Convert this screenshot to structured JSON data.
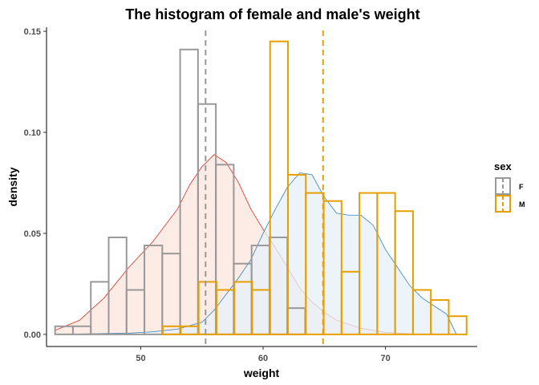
{
  "chart_data": {
    "type": "histogram",
    "title": "The histogram of female and male's weight",
    "xlabel": "weight",
    "ylabel": "density",
    "xlim": [
      42.3,
      77.5
    ],
    "ylim": [
      -0.006,
      0.152
    ],
    "x_ticks": [
      50,
      60,
      70
    ],
    "x_tick_labels": [
      "50",
      "60",
      "70"
    ],
    "y_ticks": [
      0.0,
      0.05,
      0.1,
      0.15
    ],
    "y_tick_labels": [
      "0.00",
      "0.05",
      "0.10",
      "0.15"
    ],
    "grid": false,
    "legend": {
      "title": "sex",
      "position": "right",
      "entries": [
        {
          "label": "F",
          "color": "#999999"
        },
        {
          "label": "M",
          "color": "#E69F00"
        }
      ]
    },
    "bin_width": 1.46,
    "series": [
      {
        "name": "F",
        "outline_color": "#999999",
        "density_color": "#D7301F",
        "density_fill": "#FCE4DD",
        "mean": 55.3,
        "bin_starts": [
          43.0,
          44.46,
          45.92,
          47.38,
          48.84,
          50.3,
          51.76,
          53.22,
          54.68,
          56.14,
          57.6,
          59.06,
          60.52,
          61.98
        ],
        "densities": [
          0.004,
          0.004,
          0.026,
          0.048,
          0.022,
          0.044,
          0.04,
          0.141,
          0.114,
          0.084,
          0.035,
          0.044,
          0.048,
          0.013
        ],
        "kde_x": [
          43,
          45,
          47,
          49,
          51,
          53,
          54,
          55,
          56,
          57,
          58,
          59,
          60,
          61,
          62,
          63,
          64,
          65,
          66,
          68,
          70,
          72,
          74,
          75.5
        ],
        "kde_y": [
          0.002,
          0.007,
          0.018,
          0.033,
          0.046,
          0.062,
          0.074,
          0.083,
          0.089,
          0.085,
          0.075,
          0.062,
          0.052,
          0.043,
          0.033,
          0.023,
          0.016,
          0.011,
          0.007,
          0.003,
          0.001,
          0.0003,
          0.0001,
          0.0
        ]
      },
      {
        "name": "M",
        "outline_color": "#E69F00",
        "density_color": "#3182BD",
        "density_fill": "#E6F0F7",
        "mean": 64.9,
        "bin_starts": [
          51.81,
          53.27,
          54.73,
          56.19,
          57.65,
          59.11,
          60.57,
          62.03,
          63.49,
          64.95,
          66.41,
          67.87,
          69.33,
          70.79,
          72.25,
          73.71,
          75.17
        ],
        "densities": [
          0.004,
          0.004,
          0.026,
          0.022,
          0.026,
          0.022,
          0.145,
          0.079,
          0.07,
          0.066,
          0.031,
          0.07,
          0.07,
          0.061,
          0.022,
          0.017,
          0.009
        ],
        "kde_x": [
          43,
          46,
          49,
          51,
          53,
          55,
          56,
          57,
          58,
          59,
          60,
          61,
          62,
          63,
          64,
          65,
          66,
          67,
          68,
          69,
          70,
          71,
          72,
          73,
          74,
          75,
          75.8
        ],
        "kde_y": [
          0.0,
          0.0003,
          0.0006,
          0.0013,
          0.0026,
          0.006,
          0.012,
          0.02,
          0.028,
          0.037,
          0.05,
          0.062,
          0.073,
          0.08,
          0.079,
          0.068,
          0.06,
          0.059,
          0.059,
          0.054,
          0.042,
          0.033,
          0.024,
          0.018,
          0.014,
          0.01,
          0.0
        ]
      }
    ]
  }
}
